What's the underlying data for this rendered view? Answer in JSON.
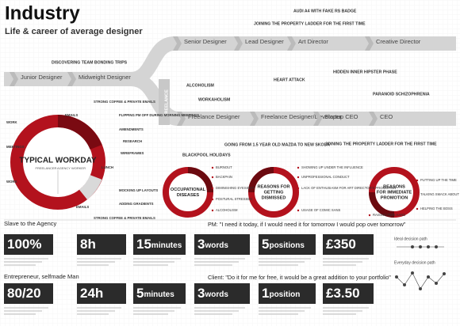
{
  "header": {
    "title": "Industry",
    "subtitle": "Life & career of average designer"
  },
  "career": {
    "branch": "FREELANCE",
    "nodes": [
      "Junior Designer",
      "Midweight Designer",
      "Senior Designer",
      "Lead Designer",
      "Art Director",
      "Creative Director",
      "Freelance Designer",
      "Freelance Designer/Developer",
      "Startup CEO",
      "CEO"
    ],
    "events": [
      "AUDI A4 WITH FAKE RS BADGE",
      "JOINING THE PROPERTY LADDER FOR THE FIRST TIME",
      "DISCOVERING TEAM BONDING TRIPS",
      "ALCOHOLISM",
      "WORKAHOLISM",
      "HEART ATTACK",
      "HIDDEN INNER HIPSTER PHASE",
      "PARANOID SCHIZOPHRENIA",
      "GOING FROM 1.5 YEAR OLD MAZDA TO NEW SKODA",
      "BLACKPOOL HOLIDAYS",
      "JOINING THE PROPERTY LADDER FOR THE FIRST TIME"
    ]
  },
  "workday": {
    "title": "TYPICAL WORKDAY",
    "left_label": "FREELANCER",
    "right_label": "AGENCY WORKER",
    "activities": [
      "STRONG COFFEE & PRIVATE EMAILS",
      "FLIPPING PM OFF DURING MORNING MEETINGS",
      "AMENDMENTS",
      "RESEARCH",
      "WIREFRAMES",
      "MOCKING UP LAYOUTS",
      "ADDING GRADIENTS",
      "STRONG COFFEE & PRIVATE EMAILS",
      "WORK",
      "MEETINGS",
      "WORK",
      "EMAILS",
      "LUNCH",
      "EMAILS"
    ]
  },
  "circles": [
    {
      "title": [
        "OCCUPATIONAL",
        "DISEASES"
      ],
      "items": [
        "BURNOUT",
        "BACKPAIN",
        "DIMINISHING EYESIGHT",
        "POSTURAL STRESSES",
        "ALCOHOLISM"
      ]
    },
    {
      "title": [
        "REASONS FOR",
        "GETTING",
        "DISMISSED"
      ],
      "items": [
        "SHOWING UP UNDER THE INFLUENCE",
        "UNPROFESSIONAL CONDUCT",
        "LACK OF ENTHUSIASM FOR ART DIRECTOR'S PROMOTION",
        "USAGE OF COMIC SANS"
      ]
    },
    {
      "title": [
        "REASONS",
        "FOR IMMEDIATE",
        "PROMOTION"
      ],
      "items": [
        "PUTTING UP THE TIME",
        "TALKING SMACK ABOUT NEW HIRES",
        "HELPING THE BOSS",
        "RAISING PM'S HAND"
      ]
    }
  ],
  "stats": [
    {
      "heading": "Slave to the Agency",
      "quote": "PM: \"I need it today, if I would need it for tomorrow I would pop over tomorrow\"",
      "boxes": [
        {
          "big": "100%",
          "small": ""
        },
        {
          "big": "8h",
          "small": ""
        },
        {
          "big": "15",
          "small": "minutes"
        },
        {
          "big": "3",
          "small": "words"
        },
        {
          "big": "5",
          "small": "positions"
        },
        {
          "big": "£350",
          "small": ""
        }
      ]
    },
    {
      "heading": "Entrepreneur, selfmade Man",
      "quote": "Client: \"Do it for me for free, it would be a great addition to your portfolio\"",
      "boxes": [
        {
          "big": "80/20",
          "small": ""
        },
        {
          "big": "24h",
          "small": ""
        },
        {
          "big": "5",
          "small": "minutes"
        },
        {
          "big": "3",
          "small": "words"
        },
        {
          "big": "1",
          "small": "position"
        },
        {
          "big": "£3.50",
          "small": ""
        }
      ]
    }
  ],
  "decision": {
    "ideal": "Ideal decision path",
    "everyday": "Everyday decision path"
  }
}
